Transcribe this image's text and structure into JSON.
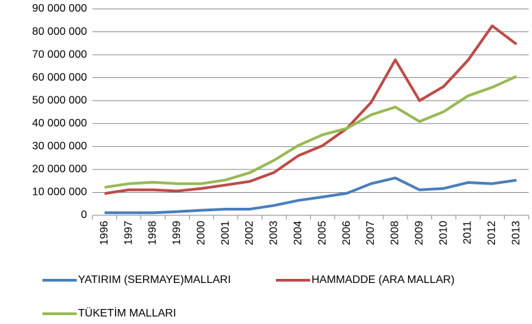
{
  "chart_data": {
    "type": "line",
    "categories": [
      "1996",
      "1997",
      "1998",
      "1999",
      "2000",
      "2001",
      "2002",
      "2003",
      "2004",
      "2005",
      "2006",
      "2007",
      "2008",
      "2009",
      "2010",
      "2011",
      "2012",
      "2013"
    ],
    "series": [
      {
        "name": "YATIRIM (SERMAYE)MALLARI",
        "color": "#4a7ebb",
        "values": [
          1100000,
          1100000,
          1100000,
          1600000,
          2200000,
          2700000,
          2700000,
          4300000,
          6500000,
          8000000,
          9600000,
          13800000,
          16300000,
          11100000,
          11700000,
          14300000,
          13800000,
          15300000
        ]
      },
      {
        "name": "HAMMADDE (ARA MALLAR)",
        "color": "#be4b48",
        "values": [
          9500000,
          11100000,
          11100000,
          10600000,
          11700000,
          13200000,
          14800000,
          18700000,
          26000000,
          30400000,
          37900000,
          49200000,
          67800000,
          50000000,
          56200000,
          67600000,
          82600000,
          74600000
        ]
      },
      {
        "name": "TÜKETİM MALLARI",
        "color": "#98b954",
        "values": [
          12200000,
          13800000,
          14400000,
          13800000,
          13800000,
          15400000,
          18600000,
          24000000,
          30500000,
          35100000,
          37900000,
          43800000,
          47200000,
          40900000,
          45200000,
          52100000,
          55800000,
          60600000
        ]
      }
    ],
    "ylim": [
      0,
      90000000
    ],
    "yticks": [
      {
        "value": 0,
        "label": "0"
      },
      {
        "value": 10000000,
        "label": "10 000 000"
      },
      {
        "value": 20000000,
        "label": "20 000 000"
      },
      {
        "value": 30000000,
        "label": "30 000 000"
      },
      {
        "value": 40000000,
        "label": "40 000 000"
      },
      {
        "value": 50000000,
        "label": "50 000 000"
      },
      {
        "value": 60000000,
        "label": "60 000 000"
      },
      {
        "value": 70000000,
        "label": "70 000 000"
      },
      {
        "value": 80000000,
        "label": "80 000 000"
      },
      {
        "value": 90000000,
        "label": "90 000 000"
      }
    ],
    "grid": true,
    "legend": "bottom"
  }
}
